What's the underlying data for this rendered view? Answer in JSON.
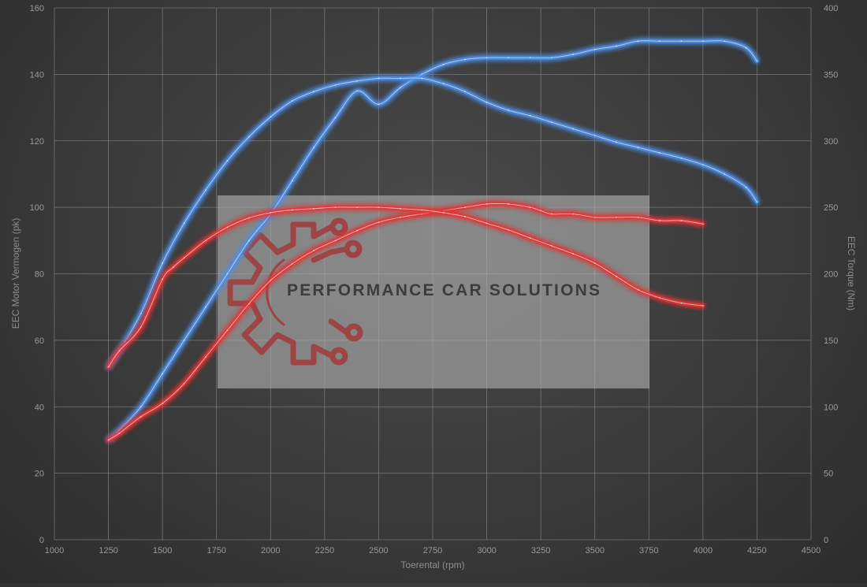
{
  "chart_data": {
    "type": "line",
    "title": "",
    "xlabel": "Toerental (rpm)",
    "ylabel_left": "EEC Motor Vermogen (pk)",
    "ylabel_right": "EEC Torque (Nm)",
    "xlim": [
      1000,
      4500
    ],
    "ylim_left": [
      0,
      160
    ],
    "ylim_right": [
      0,
      400
    ],
    "x_ticks": [
      "1000",
      "1250",
      "1500",
      "1750",
      "2000",
      "2250",
      "2500",
      "2750",
      "3000",
      "3250",
      "3500",
      "3750",
      "4000",
      "4250",
      "4500"
    ],
    "y_ticks_left": [
      "0",
      "20",
      "40",
      "60",
      "80",
      "100",
      "120",
      "140",
      "160"
    ],
    "y_ticks_right": [
      "0",
      "50",
      "100",
      "150",
      "200",
      "250",
      "300",
      "350",
      "400"
    ],
    "grid": true,
    "legend": "none",
    "series": [
      {
        "axis": "left",
        "color": "#4d8fe6",
        "x": [
          1250,
          1300,
          1400,
          1500,
          1600,
          1700,
          1800,
          1900,
          2000,
          2100,
          2200,
          2300,
          2400,
          2500,
          2600,
          2700,
          2800,
          2900,
          3000,
          3100,
          3200,
          3300,
          3400,
          3500,
          3600,
          3700,
          3800,
          3900,
          4000,
          4100,
          4200,
          4250
        ],
        "values": [
          30,
          33,
          40,
          50,
          60,
          70,
          80,
          90,
          98,
          108,
          118,
          127,
          135,
          131,
          136,
          140,
          143,
          144.5,
          145,
          145,
          145,
          145,
          146,
          147.5,
          148.5,
          150,
          150,
          150,
          150,
          150,
          148,
          144
        ]
      },
      {
        "axis": "right",
        "color": "#4d8fe6",
        "x": [
          1250,
          1300,
          1400,
          1500,
          1600,
          1700,
          1800,
          1900,
          2000,
          2100,
          2200,
          2300,
          2400,
          2500,
          2600,
          2700,
          2800,
          2900,
          3000,
          3100,
          3200,
          3300,
          3400,
          3500,
          3600,
          3700,
          3800,
          3900,
          4000,
          4100,
          4200,
          4250
        ],
        "values": [
          130,
          142,
          170,
          208,
          238,
          263,
          285,
          303,
          318,
          330,
          337,
          342,
          345,
          347,
          347,
          347,
          343,
          337,
          329,
          323,
          319,
          314,
          309,
          304,
          299,
          295,
          291,
          287,
          282,
          275,
          265,
          254
        ]
      },
      {
        "axis": "left",
        "color": "#e23434",
        "x": [
          1250,
          1300,
          1400,
          1500,
          1600,
          1700,
          1800,
          1900,
          2000,
          2100,
          2200,
          2300,
          2400,
          2500,
          2600,
          2700,
          2800,
          2900,
          3000,
          3100,
          3200,
          3250,
          3300,
          3400,
          3500,
          3600,
          3700,
          3800,
          3900,
          4000
        ],
        "values": [
          30,
          32,
          37,
          41,
          47,
          55,
          63,
          71,
          78,
          83,
          87,
          90,
          93,
          95.5,
          97,
          98,
          99,
          100,
          101,
          101,
          100,
          99,
          98,
          98,
          97,
          97,
          97,
          96,
          96,
          95
        ]
      },
      {
        "axis": "right",
        "color": "#e23434",
        "x": [
          1250,
          1300,
          1400,
          1500,
          1550,
          1600,
          1700,
          1800,
          1900,
          2000,
          2100,
          2200,
          2300,
          2400,
          2500,
          2600,
          2700,
          2800,
          2900,
          3000,
          3100,
          3200,
          3300,
          3400,
          3500,
          3600,
          3700,
          3800,
          3900,
          4000
        ],
        "values": [
          130,
          142,
          160,
          196,
          205,
          212,
          225,
          235,
          242,
          246,
          248,
          249,
          250,
          250,
          250,
          249,
          248,
          246,
          243,
          238,
          233,
          227,
          221,
          215,
          208,
          198,
          188,
          182,
          178,
          176
        ]
      }
    ]
  },
  "watermark": {
    "text": "PERFORMANCE CAR SOLUTIONS",
    "logo_icon": "gear-circuit-icon",
    "box_color": "#b0b0b0",
    "logo_color": "#a23a3a",
    "text_color": "#3c3c3c"
  }
}
